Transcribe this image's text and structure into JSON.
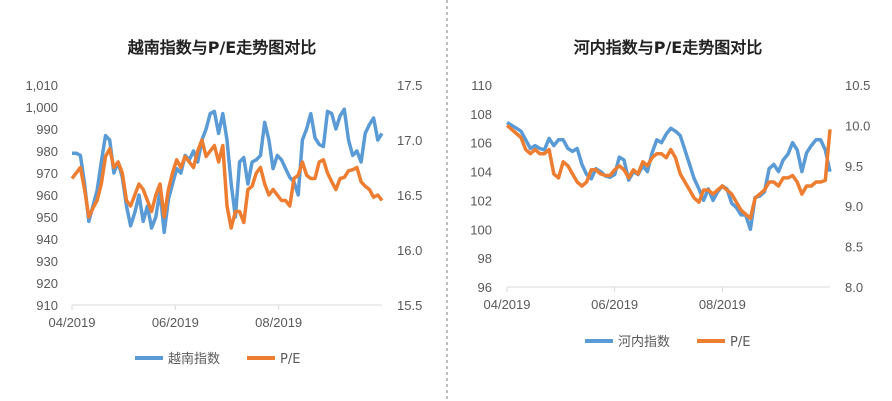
{
  "colors": {
    "index": "#5B9BD5",
    "pe": "#ED7D31",
    "axis": "#D9D9D9",
    "divider": "#7F7F7F"
  },
  "chart_data": [
    {
      "type": "line",
      "title": "越南指数与P/E走势图对比",
      "x_ticks": [
        "04/2019",
        "06/2019",
        "08/2019"
      ],
      "y_left": {
        "min": 910,
        "max": 1010,
        "step": 10,
        "labels": [
          "910",
          "920",
          "930",
          "940",
          "950",
          "960",
          "970",
          "980",
          "990",
          "1,000",
          "1,010"
        ]
      },
      "y_right": {
        "min": 15.5,
        "max": 17.5,
        "step": 0.5,
        "labels": [
          "15.5",
          "16.0",
          "16.5",
          "17.0",
          "17.5"
        ]
      },
      "legend": [
        "越南指数",
        "P/E"
      ],
      "legend_position": "bottom",
      "series": [
        {
          "name": "越南指数",
          "axis": "left",
          "values": [
            979,
            979,
            978,
            965,
            948,
            955,
            962,
            975,
            987,
            985,
            970,
            975,
            968,
            955,
            946,
            952,
            960,
            948,
            955,
            945,
            950,
            962,
            943,
            958,
            965,
            972,
            970,
            978,
            976,
            980,
            975,
            985,
            990,
            997,
            998,
            988,
            997,
            985,
            965,
            950,
            975,
            977,
            965,
            975,
            976,
            978,
            993,
            985,
            972,
            978,
            976,
            972,
            968,
            966,
            960,
            985,
            990,
            997,
            986,
            983,
            982,
            998,
            997,
            990,
            996,
            999,
            985,
            978,
            980,
            975,
            988,
            992,
            995,
            985,
            988
          ]
        },
        {
          "name": "P/E",
          "axis": "right",
          "values": [
            16.65,
            16.7,
            16.75,
            16.55,
            16.3,
            16.38,
            16.45,
            16.6,
            16.85,
            16.92,
            16.75,
            16.8,
            16.7,
            16.45,
            16.4,
            16.5,
            16.6,
            16.55,
            16.45,
            16.35,
            16.5,
            16.6,
            16.3,
            16.55,
            16.7,
            16.82,
            16.75,
            16.85,
            16.8,
            16.75,
            16.9,
            17.0,
            16.85,
            16.9,
            16.95,
            16.8,
            16.95,
            16.4,
            16.2,
            16.35,
            16.35,
            16.25,
            16.55,
            16.58,
            16.7,
            16.75,
            16.6,
            16.5,
            16.55,
            16.5,
            16.45,
            16.45,
            16.4,
            16.65,
            16.68,
            16.8,
            16.68,
            16.65,
            16.65,
            16.8,
            16.82,
            16.7,
            16.62,
            16.55,
            16.65,
            16.66,
            16.72,
            16.73,
            16.75,
            16.62,
            16.58,
            16.55,
            16.48,
            16.5,
            16.45
          ]
        }
      ]
    },
    {
      "type": "line",
      "title": "河内指数与P/E走势图对比",
      "x_ticks": [
        "04/2019",
        "06/2019",
        "08/2019"
      ],
      "y_left": {
        "min": 96,
        "max": 110,
        "step": 2,
        "labels": [
          "96",
          "98",
          "100",
          "102",
          "104",
          "106",
          "108",
          "110"
        ]
      },
      "y_right": {
        "min": 8.0,
        "max": 10.5,
        "step": 0.5,
        "labels": [
          "8.0",
          "8.5",
          "9.0",
          "9.5",
          "10.0",
          "10.5"
        ]
      },
      "legend": [
        "河内指数",
        "P/E"
      ],
      "legend_position": "bottom",
      "series": [
        {
          "name": "河内指数",
          "axis": "left",
          "values": [
            107.4,
            107.2,
            107,
            106.8,
            106.2,
            105.6,
            105.8,
            105.6,
            105.5,
            106.3,
            105.8,
            106.2,
            106.2,
            105.6,
            105.4,
            105.6,
            104.5,
            103.8,
            103.5,
            104.2,
            104.0,
            103.7,
            103.6,
            103.8,
            105.0,
            104.8,
            103.4,
            104.0,
            103.8,
            104.4,
            104.0,
            105.3,
            106.2,
            106.0,
            106.6,
            107.0,
            106.8,
            106.5,
            105.5,
            104.5,
            103.5,
            102.8,
            102.0,
            102.8,
            102.0,
            102.6,
            103.0,
            102.8,
            101.8,
            101.5,
            101.0,
            101.0,
            100.0,
            102.2,
            102.3,
            102.6,
            104.2,
            104.5,
            104.0,
            104.8,
            105.2,
            106.0,
            105.5,
            104.0,
            105.3,
            105.8,
            106.2,
            106.2,
            105.5,
            104.0
          ]
        },
        {
          "name": "P/E",
          "axis": "right",
          "values": [
            10.0,
            9.95,
            9.9,
            9.85,
            9.7,
            9.65,
            9.7,
            9.65,
            9.65,
            9.7,
            9.4,
            9.35,
            9.55,
            9.5,
            9.4,
            9.3,
            9.25,
            9.3,
            9.45,
            9.45,
            9.4,
            9.38,
            9.38,
            9.45,
            9.5,
            9.45,
            9.35,
            9.45,
            9.4,
            9.55,
            9.5,
            9.6,
            9.65,
            9.65,
            9.6,
            9.7,
            9.6,
            9.4,
            9.3,
            9.2,
            9.1,
            9.05,
            9.2,
            9.2,
            9.15,
            9.2,
            9.25,
            9.2,
            9.15,
            9.05,
            8.95,
            8.9,
            8.85,
            9.1,
            9.15,
            9.2,
            9.3,
            9.3,
            9.25,
            9.35,
            9.35,
            9.38,
            9.3,
            9.15,
            9.25,
            9.25,
            9.3,
            9.3,
            9.32,
            9.95
          ]
        }
      ]
    }
  ]
}
